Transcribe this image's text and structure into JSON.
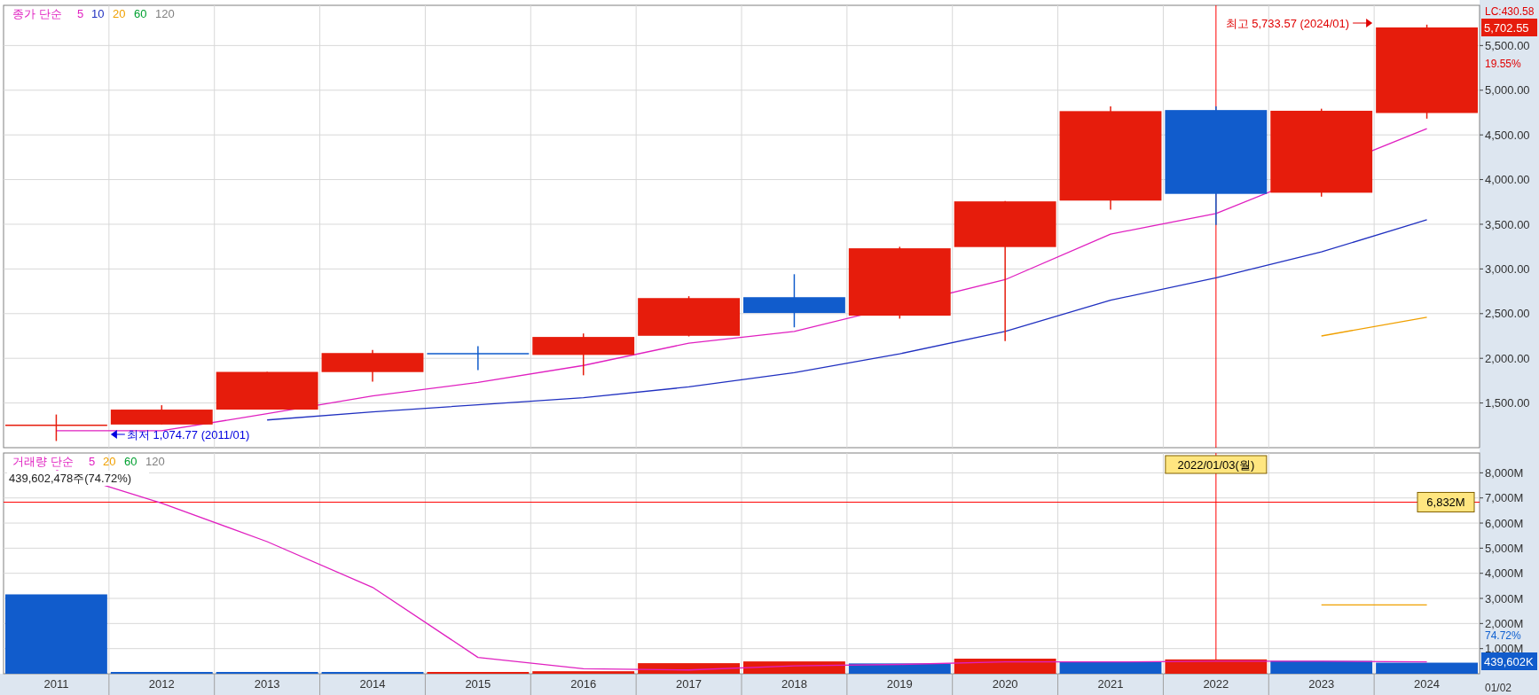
{
  "chart_data": [
    {
      "type": "candlestick",
      "categories": [
        "2011",
        "2012",
        "2013",
        "2014",
        "2015",
        "2016",
        "2017",
        "2018",
        "2019",
        "2020",
        "2021",
        "2022",
        "2023",
        "2024"
      ],
      "ohlc": [
        [
          1258,
          1371,
          1074.77,
          1258
        ],
        [
          1259,
          1475,
          1259,
          1426
        ],
        [
          1426,
          1849,
          1426,
          1848
        ],
        [
          1846,
          2094,
          1738,
          2059
        ],
        [
          2059,
          2135,
          1867,
          2044
        ],
        [
          2038,
          2278,
          1810,
          2239
        ],
        [
          2252,
          2695,
          2245,
          2674
        ],
        [
          2684,
          2941,
          2347,
          2507
        ],
        [
          2477,
          3248,
          2444,
          3231
        ],
        [
          3245,
          3760,
          2192,
          3756
        ],
        [
          3765,
          4819,
          3663,
          4766
        ],
        [
          4778,
          4819,
          3492,
          3840
        ],
        [
          3853,
          4793,
          3809,
          4770
        ],
        [
          4745,
          5733.57,
          4682,
          5702.55
        ]
      ],
      "series": [
        {
          "type": "line",
          "name": "5",
          "color": "#e020c0",
          "values": [
            1190,
            1190,
            1380,
            1580,
            1730,
            1920,
            2170,
            2300,
            null,
            2880,
            3390,
            3620,
            null,
            4570
          ]
        },
        {
          "type": "line",
          "name": "10",
          "color": "#2030c0",
          "values": [
            null,
            null,
            1310,
            1400,
            1480,
            1560,
            1680,
            1840,
            2050,
            2300,
            2650,
            2900,
            3190,
            3550
          ]
        },
        {
          "type": "line",
          "name": "20",
          "color": "#f0a000",
          "values": [
            null,
            null,
            null,
            null,
            null,
            null,
            null,
            null,
            null,
            null,
            null,
            null,
            2250,
            2460
          ]
        },
        {
          "type": "line",
          "name": "60",
          "color": "#00a030",
          "values": [
            null,
            null,
            null,
            null,
            null,
            null,
            null,
            null,
            null,
            null,
            null,
            null,
            null,
            null
          ]
        },
        {
          "type": "line",
          "name": "120",
          "color": "#808080",
          "values": [
            null,
            null,
            null,
            null,
            null,
            null,
            null,
            null,
            null,
            null,
            null,
            null,
            null,
            null
          ]
        }
      ],
      "legend_title": "종가 단순",
      "legend": "top left",
      "ylim": [
        1000,
        5950
      ],
      "yticks": [
        {
          "value": 1500,
          "label": "1,500.00"
        },
        {
          "value": 2000,
          "label": "2,000.00"
        },
        {
          "value": 2500,
          "label": "2,500.00"
        },
        {
          "value": 3000,
          "label": "3,000.00"
        },
        {
          "value": 3500,
          "label": "3,500.00"
        },
        {
          "value": 4000,
          "label": "4,000.00"
        },
        {
          "value": 4500,
          "label": "4,500.00"
        },
        {
          "value": 5000,
          "label": "5,000.00"
        },
        {
          "value": 5500,
          "label": "5,500.00"
        }
      ],
      "grid": true,
      "tick_labels": "y",
      "ref_lines": [
        {
          "axis": "x",
          "value": "2022",
          "color": "#ff0000"
        }
      ],
      "annotations": [
        "최저 1,074.77 (2011/01)",
        "최고 5,733.57 (2024/01)",
        "5,702.55",
        "LC:430.58",
        "19.55%"
      ]
    },
    {
      "type": "bar",
      "categories": [
        "2011",
        "2012",
        "2013",
        "2014",
        "2015",
        "2016",
        "2017",
        "2018",
        "2019",
        "2020",
        "2021",
        "2022",
        "2023",
        "2024"
      ],
      "subtitle": "439,602,478주(74.72%)",
      "series": [
        {
          "type": "bar",
          "values": [
            3160,
            70,
            70,
            70,
            70,
            100,
            420,
            490,
            410,
            600,
            470,
            570,
            510,
            440
          ],
          "colors": [
            "#115ccc",
            "#115ccc",
            "#115ccc",
            "#115ccc",
            "#e61c0c",
            "#e61c0c",
            "#e61c0c",
            "#e61c0c",
            "#115ccc",
            "#e61c0c",
            "#115ccc",
            "#e61c0c",
            "#115ccc",
            "#115ccc"
          ]
        },
        {
          "type": "line",
          "name": "5",
          "color": "#e020c0",
          "values": [
            8100,
            6790,
            5260,
            3440,
            650,
            200,
            150,
            310,
            370,
            470,
            470,
            500,
            500,
            470
          ]
        },
        {
          "type": "line",
          "name": "20",
          "color": "#f0a000",
          "values": [
            null,
            null,
            null,
            null,
            null,
            null,
            null,
            null,
            null,
            null,
            null,
            null,
            2740,
            2740
          ]
        },
        {
          "type": "line",
          "name": "60",
          "color": "#00a030",
          "values": [
            null,
            null,
            null,
            null,
            null,
            null,
            null,
            null,
            null,
            null,
            null,
            null,
            null,
            null
          ]
        },
        {
          "type": "line",
          "name": "120",
          "color": "#808080",
          "values": [
            null,
            null,
            null,
            null,
            null,
            null,
            null,
            null,
            null,
            null,
            null,
            null,
            null,
            null
          ]
        }
      ],
      "legend_title": "거래량 단순",
      "legend": "top left",
      "ylim": [
        0,
        8790
      ],
      "yticks": [
        {
          "value": 1000,
          "label": "1,000M"
        },
        {
          "value": 2000,
          "label": "2,000M"
        },
        {
          "value": 3000,
          "label": "3,000M"
        },
        {
          "value": 4000,
          "label": "4,000M"
        },
        {
          "value": 5000,
          "label": "5,000M"
        },
        {
          "value": 6000,
          "label": "6,000M"
        },
        {
          "value": 7000,
          "label": "7,000M"
        },
        {
          "value": 8000,
          "label": "8,000M"
        }
      ],
      "grid": true,
      "ref_lines": [
        {
          "axis": "y",
          "value": 6832,
          "label": "6,832M",
          "color": "#ff0000"
        },
        {
          "axis": "x",
          "value": "2022",
          "label": "2022/01/03(월)",
          "color": "#ff0000"
        }
      ],
      "annotations": [
        "439,602K",
        "01/02",
        "74.72%"
      ]
    }
  ]
}
